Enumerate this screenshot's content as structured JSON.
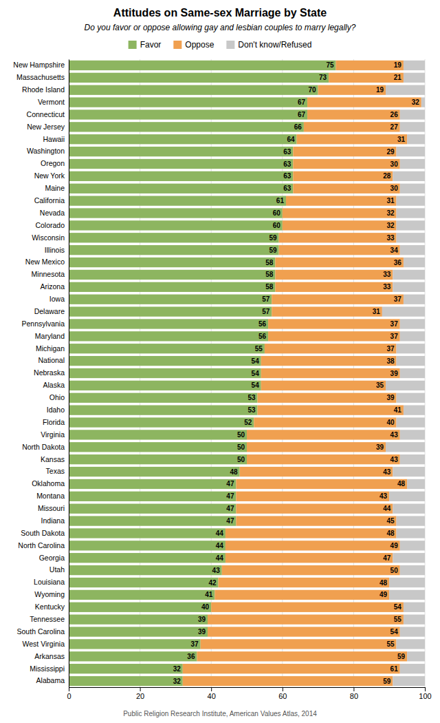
{
  "chart_data": {
    "type": "bar",
    "orientation": "horizontal",
    "stacked": true,
    "title": "Attitudes on Same-sex Marriage by State",
    "subtitle": "Do you favor or oppose allowing gay and lesbian couples to marry legally?",
    "footer": "Public Religion Research Institute, American Values Atlas, 2014",
    "categories": [
      "New Hampshire",
      "Massachusetts",
      "Rhode Island",
      "Vermont",
      "Connecticut",
      "New Jersey",
      "Hawaii",
      "Washington",
      "Oregon",
      "New York",
      "Maine",
      "California",
      "Nevada",
      "Colorado",
      "Wisconsin",
      "Illinois",
      "New Mexico",
      "Minnesota",
      "Arizona",
      "Iowa",
      "Delaware",
      "Pennsylvania",
      "Maryland",
      "Michigan",
      "National",
      "Nebraska",
      "Alaska",
      "Ohio",
      "Idaho",
      "Florida",
      "Virginia",
      "North Dakota",
      "Kansas",
      "Texas",
      "Oklahoma",
      "Montana",
      "Missouri",
      "Indiana",
      "South Dakota",
      "North Carolina",
      "Georgia",
      "Utah",
      "Louisiana",
      "Wyoming",
      "Kentucky",
      "Tennessee",
      "South Carolina",
      "West Virginia",
      "Arkansas",
      "Mississippi",
      "Alabama"
    ],
    "series": [
      {
        "name": "Favor",
        "color": "#8db560",
        "data_labels": true,
        "values": [
          75,
          73,
          70,
          67,
          67,
          66,
          64,
          63,
          63,
          63,
          63,
          61,
          60,
          60,
          59,
          59,
          58,
          58,
          58,
          57,
          57,
          56,
          56,
          55,
          54,
          54,
          54,
          53,
          53,
          52,
          50,
          50,
          50,
          48,
          47,
          47,
          47,
          47,
          44,
          44,
          44,
          43,
          42,
          41,
          40,
          39,
          39,
          37,
          36,
          32,
          32
        ]
      },
      {
        "name": "Oppose",
        "color": "#f0a050",
        "data_labels": true,
        "values": [
          19,
          21,
          19,
          32,
          26,
          27,
          31,
          29,
          30,
          28,
          30,
          31,
          32,
          32,
          33,
          34,
          36,
          33,
          33,
          37,
          31,
          37,
          37,
          37,
          38,
          39,
          35,
          39,
          41,
          40,
          43,
          39,
          43,
          43,
          48,
          43,
          44,
          45,
          48,
          49,
          47,
          50,
          48,
          49,
          54,
          55,
          54,
          55,
          59,
          61,
          59
        ]
      },
      {
        "name": "Don't know/Refused",
        "color": "#c8c8c8",
        "data_labels": false,
        "values": [
          6,
          6,
          11,
          1,
          7,
          7,
          5,
          8,
          7,
          9,
          7,
          8,
          8,
          8,
          8,
          7,
          6,
          9,
          9,
          6,
          12,
          7,
          7,
          8,
          8,
          7,
          11,
          8,
          6,
          8,
          7,
          11,
          7,
          9,
          5,
          10,
          9,
          8,
          8,
          7,
          9,
          7,
          10,
          10,
          6,
          6,
          7,
          8,
          5,
          7,
          9
        ]
      }
    ],
    "xlim": [
      0,
      100
    ],
    "xticks": [
      0,
      20,
      40,
      60,
      80,
      100
    ],
    "grid": true,
    "legend": "top"
  }
}
